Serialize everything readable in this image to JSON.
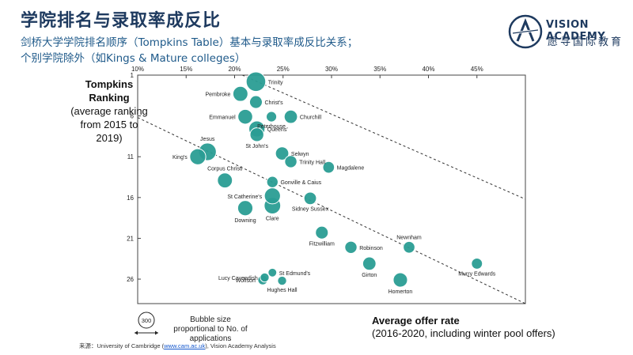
{
  "header": {
    "title": "学院排名与录取率成反比",
    "subtitle_line1": "剑桥大学学院排名顺序（Tompkins Table）基本与录取率成反比关系；",
    "subtitle_line2": "个别学院除外（如Kings & Mature colleges）"
  },
  "brand": {
    "name": "VISION ACADEMY",
    "chinese": "愿寻国际教育"
  },
  "colors": {
    "bubble": "#2a9d94",
    "bubble_stroke": "#ffffff",
    "trend": "#333333",
    "title": "#1e3a5f"
  },
  "legend": {
    "bubble_label": "300",
    "text": "Bubble size proportional to No. of applications"
  },
  "source": {
    "prefix": "来源：",
    "text1": "University of Cambridge (",
    "link": "www.cam.ac.uk",
    "text2": "), Vision Academy Analysis"
  },
  "chart_data": {
    "type": "scatter",
    "ylabel_bold": "Tompkins Ranking",
    "ylabel_rest": "(average ranking from 2015 to 2019)",
    "xlabel_bold": "Average offer rate",
    "xlabel_rest": "(2016-2020, including winter pool offers)",
    "xlim": [
      10,
      50
    ],
    "ylim": [
      1,
      29
    ],
    "y_reversed": true,
    "x_ticks": [
      "10%",
      "15%",
      "20%",
      "25%",
      "30%",
      "35%",
      "40%",
      "45%"
    ],
    "x_tick_values": [
      10,
      15,
      20,
      25,
      30,
      35,
      40,
      45
    ],
    "y_ticks": [
      "1",
      "6",
      "11",
      "16",
      "21",
      "26"
    ],
    "y_tick_values": [
      1,
      6,
      11,
      16,
      21,
      26
    ],
    "points": [
      {
        "name": "Trinity",
        "x": 22.2,
        "y": 1.8,
        "size": 560,
        "label_side": "right"
      },
      {
        "name": "Pembroke",
        "x": 20.6,
        "y": 3.3,
        "size": 330,
        "label_side": "left"
      },
      {
        "name": "Christ's",
        "x": 22.2,
        "y": 4.3,
        "size": 240,
        "label_side": "right"
      },
      {
        "name": "Emmanuel",
        "x": 21.1,
        "y": 6.1,
        "size": 320,
        "label_side": "left"
      },
      {
        "name": "Peterhouse",
        "x": 23.8,
        "y": 6.1,
        "size": 160,
        "label_side": "below"
      },
      {
        "name": "Churchill",
        "x": 25.8,
        "y": 6.1,
        "size": 260,
        "label_side": "right"
      },
      {
        "name": "Queens'",
        "x": 22.3,
        "y": 7.6,
        "size": 380,
        "label_side": "right"
      },
      {
        "name": "St John's",
        "x": 22.3,
        "y": 8.3,
        "size": 280,
        "label_side": "below"
      },
      {
        "name": "Jesus",
        "x": 17.2,
        "y": 10.4,
        "size": 460,
        "label_side": "above"
      },
      {
        "name": "King's",
        "x": 16.2,
        "y": 11.0,
        "size": 380,
        "label_side": "left"
      },
      {
        "name": "Selwyn",
        "x": 24.9,
        "y": 10.6,
        "size": 260,
        "label_side": "right"
      },
      {
        "name": "Trinity Hall",
        "x": 25.8,
        "y": 11.6,
        "size": 220,
        "label_side": "right"
      },
      {
        "name": "Magdalene",
        "x": 29.7,
        "y": 12.3,
        "size": 200,
        "label_side": "right"
      },
      {
        "name": "Corpus Christi",
        "x": 19.0,
        "y": 13.9,
        "size": 330,
        "label_side": "above"
      },
      {
        "name": "Gonville & Caius",
        "x": 23.9,
        "y": 14.1,
        "size": 190,
        "label_side": "right"
      },
      {
        "name": "St Catherine's",
        "x": 23.9,
        "y": 15.8,
        "size": 380,
        "label_side": "left"
      },
      {
        "name": "Sidney Sussex",
        "x": 27.8,
        "y": 16.1,
        "size": 230,
        "label_side": "below"
      },
      {
        "name": "Clare",
        "x": 23.9,
        "y": 17.0,
        "size": 400,
        "label_side": "below"
      },
      {
        "name": "Downing",
        "x": 21.1,
        "y": 17.3,
        "size": 340,
        "label_side": "below"
      },
      {
        "name": "Fitzwilliam",
        "x": 29.0,
        "y": 20.3,
        "size": 240,
        "label_side": "below"
      },
      {
        "name": "Robinson",
        "x": 32.0,
        "y": 22.1,
        "size": 220,
        "label_side": "right"
      },
      {
        "name": "Newnham",
        "x": 38.0,
        "y": 22.1,
        "size": 200,
        "label_side": "above"
      },
      {
        "name": "Girton",
        "x": 33.9,
        "y": 24.1,
        "size": 260,
        "label_side": "below"
      },
      {
        "name": "Murry Edwards",
        "x": 45.0,
        "y": 24.1,
        "size": 180,
        "label_side": "below"
      },
      {
        "name": "Lucy Cavendish",
        "x": 23.1,
        "y": 25.8,
        "size": 120,
        "label_side": "left"
      },
      {
        "name": "St Edmund's",
        "x": 23.9,
        "y": 25.2,
        "size": 110,
        "label_side": "right"
      },
      {
        "name": "Wolfson",
        "x": 22.9,
        "y": 26.1,
        "size": 140,
        "label_side": "left"
      },
      {
        "name": "Hughes Hall",
        "x": 24.9,
        "y": 26.2,
        "size": 120,
        "label_side": "below"
      },
      {
        "name": "Homerton",
        "x": 37.1,
        "y": 26.1,
        "size": 300,
        "label_side": "below"
      }
    ],
    "trend_lines": [
      {
        "x1": 20.8,
        "y1": 1,
        "x2": 50,
        "y2": 16.2
      },
      {
        "x1": 10,
        "y1": 6.2,
        "x2": 50,
        "y2": 29
      }
    ]
  }
}
